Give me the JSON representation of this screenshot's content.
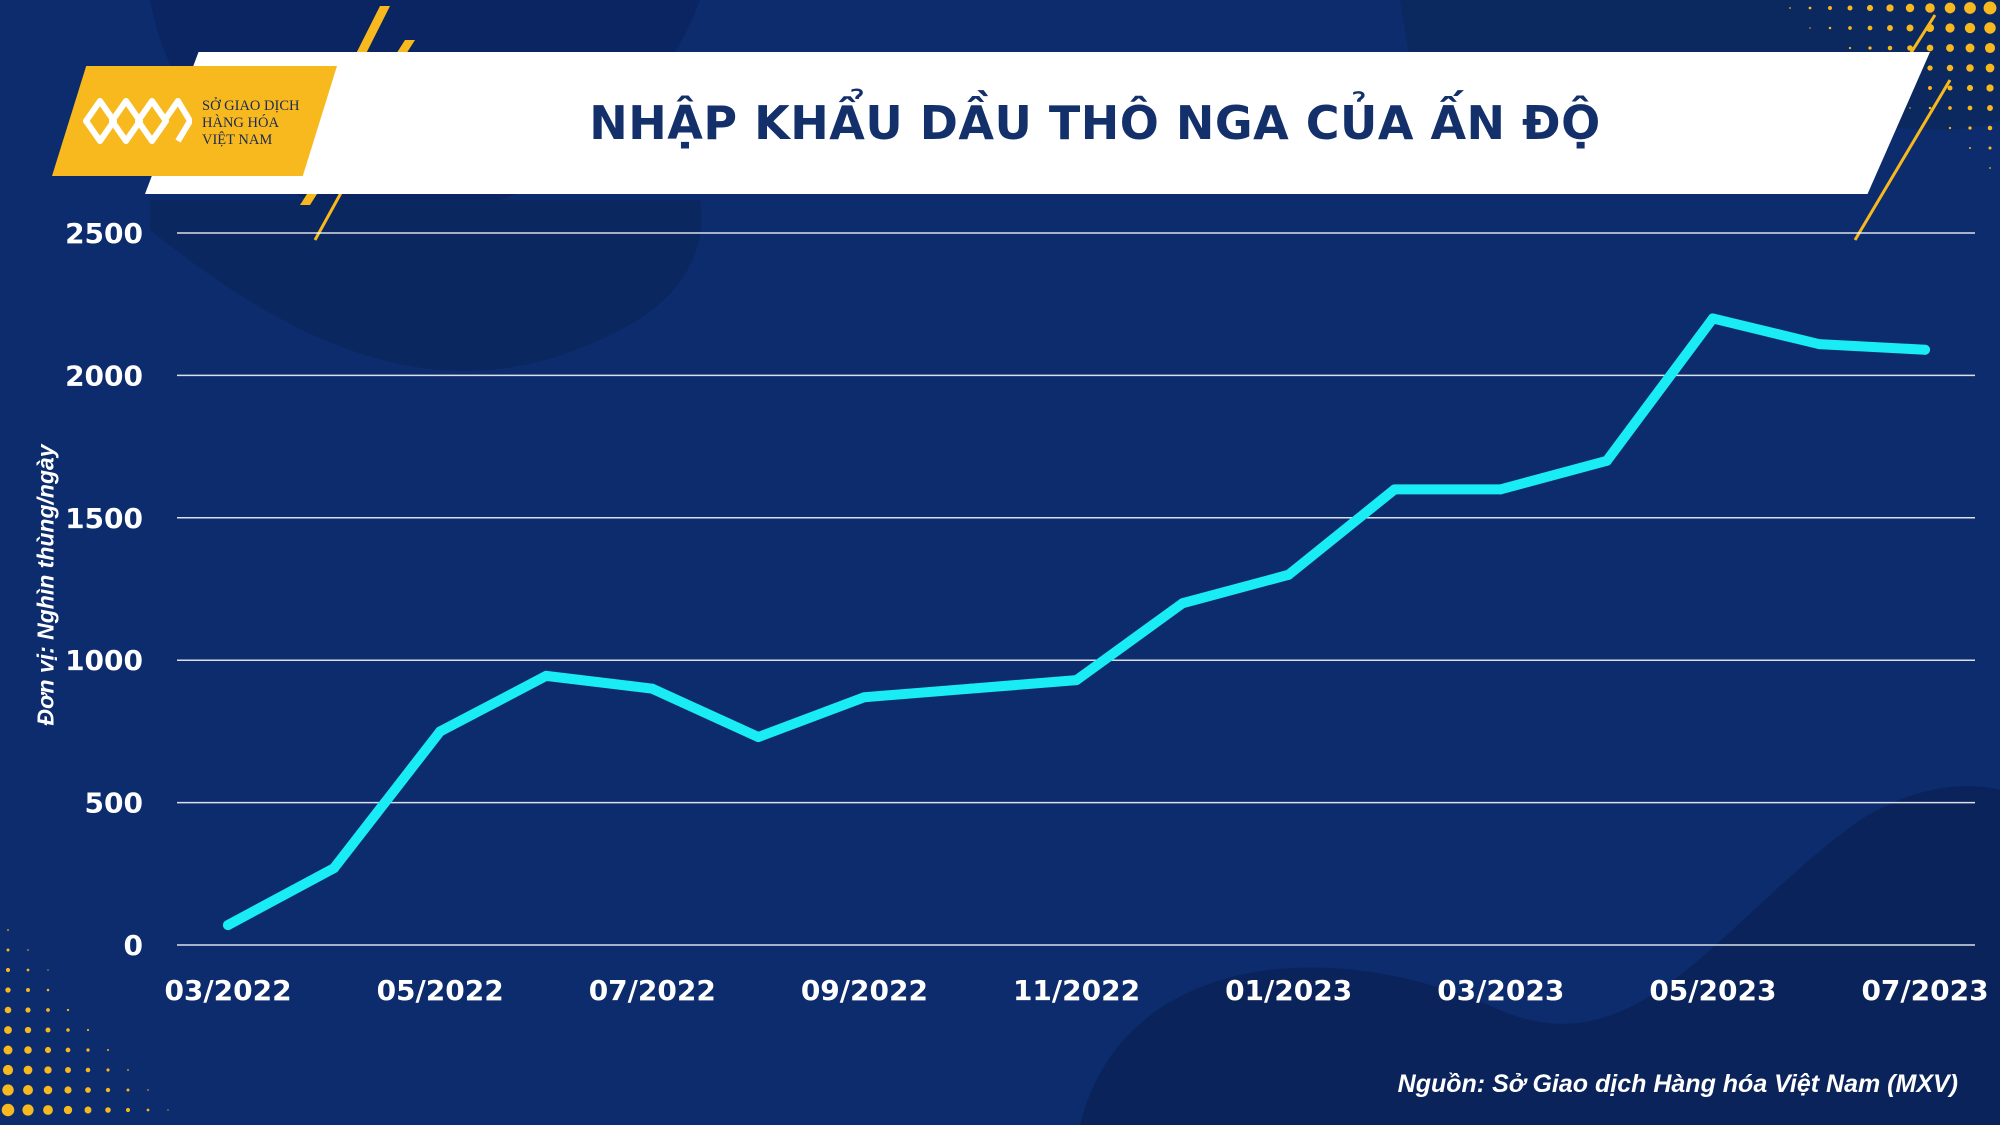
{
  "header": {
    "title": "NHẬP KHẨU DẦU THÔ NGA CỦA ẤN ĐỘ",
    "logo_lines": [
      "SỞ GIAO DỊCH",
      "HÀNG HÓA",
      "VIỆT NAM"
    ]
  },
  "source_note": "Nguồn: Sở Giao dịch Hàng hóa Việt Nam (MXV)",
  "colors": {
    "background": "#0d2c6e",
    "line": "#19ecf5",
    "accent": "#f8b91e",
    "title": "#14306b",
    "grid": "#ffffff"
  },
  "chart_data": {
    "type": "line",
    "title": "NHẬP KHẨU DẦU THÔ NGA CỦA ẤN ĐỘ",
    "xlabel": "",
    "ylabel": "Đơn vị: Nghìn thùng/ngày",
    "x": [
      "03/2022",
      "04/2022",
      "05/2022",
      "06/2022",
      "07/2022",
      "08/2022",
      "09/2022",
      "10/2022",
      "11/2022",
      "12/2022",
      "01/2023",
      "02/2023",
      "03/2023",
      "04/2023",
      "05/2023",
      "06/2023",
      "07/2023"
    ],
    "x_tick_labels": [
      "03/2022",
      "05/2022",
      "07/2022",
      "09/2022",
      "11/2022",
      "01/2023",
      "03/2023",
      "05/2023",
      "07/2023"
    ],
    "series": [
      {
        "values": [
          70,
          270,
          750,
          945,
          900,
          730,
          870,
          900,
          930,
          1200,
          1300,
          1600,
          1600,
          1700,
          2200,
          2110,
          2090
        ]
      }
    ],
    "ylim": [
      0,
      2500
    ],
    "y_ticks": [
      0,
      500,
      1000,
      1500,
      2000,
      2500
    ],
    "grid": true,
    "legend": "none"
  }
}
